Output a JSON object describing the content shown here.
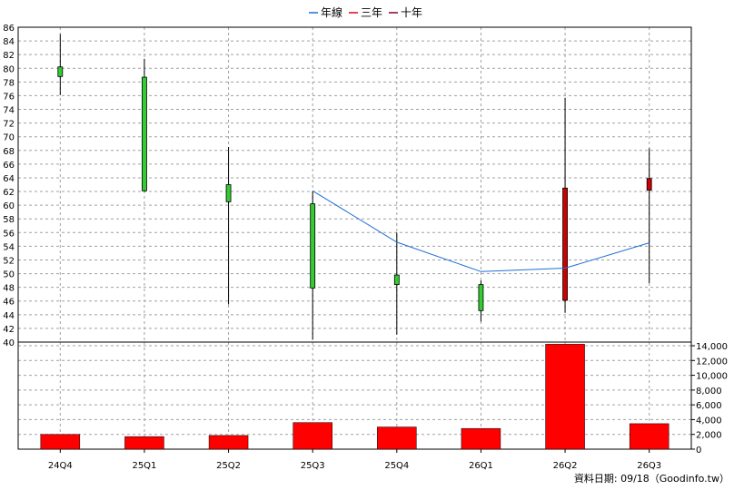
{
  "legend": [
    {
      "label": "年線",
      "color": "#1f6fd6"
    },
    {
      "label": "三年",
      "color": "#e0001a"
    },
    {
      "label": "十年",
      "color": "#8b0030"
    }
  ],
  "footer": "資料日期: 09/18（Goodinfo.tw）",
  "chart_data": [
    {
      "type": "candlestick",
      "categories": [
        "24Q4",
        "25Q1",
        "25Q2",
        "25Q3",
        "25Q4",
        "26Q1",
        "26Q2",
        "26Q3"
      ],
      "ylim": [
        40,
        86
      ],
      "yticks": [
        40,
        42,
        44,
        46,
        48,
        50,
        52,
        54,
        56,
        58,
        60,
        62,
        64,
        66,
        68,
        70,
        72,
        74,
        76,
        78,
        80,
        82,
        84,
        86
      ],
      "grid": true,
      "up_color": "#cc0000",
      "down_color": "#33cc33",
      "candles": [
        {
          "open": 80.2,
          "high": 85.0,
          "low": 76.1,
          "close": 78.8
        },
        {
          "open": 78.7,
          "high": 81.4,
          "low": 62.0,
          "close": 62.1
        },
        {
          "open": 63.0,
          "high": 68.5,
          "low": 45.5,
          "close": 60.5
        },
        {
          "open": 60.2,
          "high": 62.0,
          "low": 40.4,
          "close": 47.9
        },
        {
          "open": 49.8,
          "high": 56.0,
          "low": 41.1,
          "close": 48.4
        },
        {
          "open": 48.4,
          "high": 49.0,
          "low": 43.0,
          "close": 44.6
        },
        {
          "open": 46.1,
          "high": 75.7,
          "low": 44.3,
          "close": 62.5
        },
        {
          "open": 62.2,
          "high": 68.3,
          "low": 48.6,
          "close": 63.9
        }
      ],
      "series": [
        {
          "name": "年線",
          "color": "#1f6fd6",
          "values": [
            null,
            null,
            null,
            62.1,
            54.6,
            50.3,
            50.8,
            54.5
          ]
        }
      ]
    },
    {
      "type": "bar",
      "categories": [
        "24Q4",
        "25Q1",
        "25Q2",
        "25Q3",
        "25Q4",
        "26Q1",
        "26Q2",
        "26Q3"
      ],
      "values": [
        2000,
        1700,
        1850,
        3600,
        3000,
        2800,
        14200,
        3450
      ],
      "ylim": [
        0,
        14000
      ],
      "yticks": [
        0,
        2000,
        4000,
        6000,
        8000,
        10000,
        12000,
        14000
      ],
      "ytick_labels": [
        "0",
        "2,000",
        "4,000",
        "6,000",
        "8,000",
        "10,000",
        "12,000",
        "14,000"
      ],
      "bar_color": "#ff0000",
      "grid": true
    }
  ]
}
